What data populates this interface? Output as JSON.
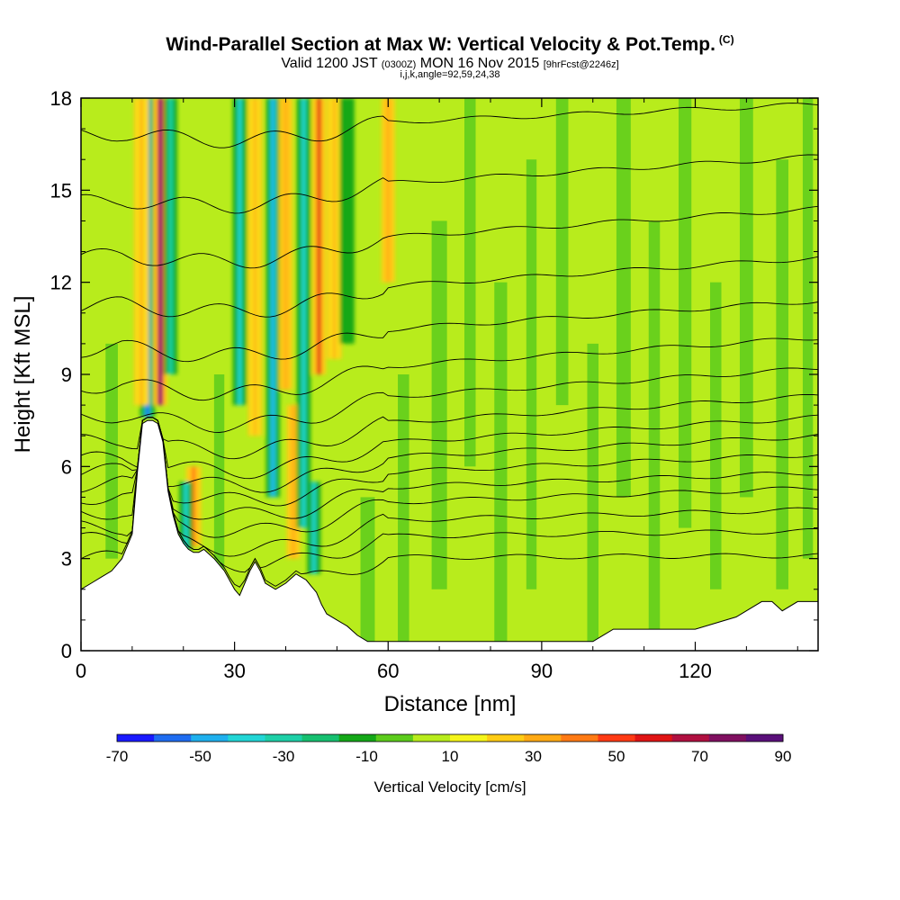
{
  "titles": {
    "main": "Wind-Parallel Section at Max W: Vertical Velocity & Pot.Temp.",
    "copyright": "(C)",
    "valid_prefix": "Valid 1200 JST",
    "valid_utc": "(0300Z)",
    "valid_date": "MON 16 Nov 2015",
    "forecast": "[9hrFcst@2246z]",
    "indices": "i,j,k,angle=92,59,24,38"
  },
  "colorbar": {
    "label": "Vertical Velocity [cm/s]",
    "ticks": [
      "-70",
      "-50",
      "-30",
      "-10",
      "10",
      "30",
      "50",
      "70",
      "90"
    ],
    "colors": [
      "#1a1aff",
      "#1f6cf0",
      "#1fb0ee",
      "#22d6d6",
      "#1ed0a8",
      "#16c070",
      "#14a818",
      "#5ccc1c",
      "#b8ec1c",
      "#f5f51a",
      "#ffcc14",
      "#ffaa14",
      "#ff7a14",
      "#ff3a14",
      "#e01414",
      "#b01040",
      "#801060",
      "#5a107a"
    ]
  },
  "chart_data": {
    "type": "heatmap",
    "title": "Wind-Parallel Section at Max W: Vertical Velocity & Pot.Temp.",
    "xlabel": "Distance [nm]",
    "ylabel": "Height [Kft MSL]",
    "xlim": [
      0,
      144
    ],
    "ylim": [
      0,
      18
    ],
    "xticks": [
      "0",
      "30",
      "60",
      "90",
      "120"
    ],
    "yticks": [
      "0",
      "3",
      "6",
      "9",
      "12",
      "15",
      "18"
    ],
    "x_tick_values": [
      0,
      30,
      60,
      90,
      120
    ],
    "y_tick_values": [
      0,
      3,
      6,
      9,
      12,
      15,
      18
    ],
    "colorbar_range": [
      -70,
      90
    ],
    "terrain": {
      "x": [
        0,
        2,
        4,
        6,
        8,
        10,
        11,
        12,
        13,
        14,
        15,
        16,
        17,
        18,
        19,
        20,
        21,
        22,
        23,
        24,
        26,
        28,
        30,
        31,
        32,
        33,
        34,
        35,
        36,
        38,
        40,
        42,
        44,
        45,
        46,
        47,
        48,
        50,
        52,
        54,
        56,
        58,
        60,
        70,
        80,
        90,
        100,
        102,
        104,
        110,
        120,
        128,
        133,
        135,
        137,
        140,
        142,
        144
      ],
      "height": [
        2.0,
        2.2,
        2.4,
        2.6,
        3.0,
        3.8,
        5.8,
        7.4,
        7.5,
        7.5,
        7.4,
        6.8,
        5.2,
        4.4,
        3.8,
        3.5,
        3.3,
        3.2,
        3.2,
        3.3,
        3.0,
        2.6,
        2.0,
        1.8,
        2.2,
        2.6,
        2.9,
        2.6,
        2.2,
        2.0,
        2.2,
        2.5,
        2.3,
        2.1,
        1.9,
        1.5,
        1.2,
        1.0,
        0.8,
        0.5,
        0.3,
        0.3,
        0.3,
        0.3,
        0.3,
        0.3,
        0.3,
        0.5,
        0.7,
        0.7,
        0.7,
        1.1,
        1.6,
        1.6,
        1.3,
        1.6,
        1.6,
        1.6
      ]
    },
    "theta_contours": {
      "levels_kelvin": [
        280,
        282,
        284,
        286,
        288,
        290,
        292,
        294,
        296,
        298,
        300,
        302,
        304,
        306,
        308,
        310
      ],
      "upstream_heights_kft": [
        3.0,
        3.6,
        4.0,
        4.5,
        5.0,
        5.4,
        5.8,
        6.2,
        6.8,
        7.6,
        8.6,
        9.8,
        11.2,
        12.8,
        14.6,
        16.8
      ],
      "downstream_heights_kft": [
        3.1,
        3.9,
        4.6,
        5.3,
        5.8,
        6.4,
        7.0,
        7.6,
        8.3,
        9.2,
        10.2,
        11.4,
        12.8,
        14.4,
        16.1,
        17.8
      ]
    },
    "vertical_velocity_features": [
      {
        "x": 13.0,
        "width": 1.5,
        "y_bottom": 7.6,
        "y_top": 18,
        "w": -55
      },
      {
        "x": 15.5,
        "width": 1.3,
        "y_bottom": 8.0,
        "y_top": 18,
        "w": 85
      },
      {
        "x": 11.8,
        "width": 1.5,
        "y_bottom": 8.0,
        "y_top": 18,
        "w": 30
      },
      {
        "x": 17.5,
        "width": 1.2,
        "y_bottom": 9.0,
        "y_top": 18,
        "w": -30
      },
      {
        "x": 22.0,
        "width": 1.5,
        "y_bottom": 3.4,
        "y_top": 6.0,
        "w": 40
      },
      {
        "x": 20.5,
        "width": 1.2,
        "y_bottom": 3.3,
        "y_top": 5.5,
        "w": -40
      },
      {
        "x": 31.0,
        "width": 1.3,
        "y_bottom": 8.0,
        "y_top": 18,
        "w": -35
      },
      {
        "x": 34.0,
        "width": 1.3,
        "y_bottom": 7.0,
        "y_top": 18,
        "w": 28
      },
      {
        "x": 37.5,
        "width": 1.3,
        "y_bottom": 5.0,
        "y_top": 18,
        "w": -45
      },
      {
        "x": 40.0,
        "width": 1.2,
        "y_bottom": 8.5,
        "y_top": 18,
        "w": 35
      },
      {
        "x": 41.5,
        "width": 1.2,
        "y_bottom": 3.0,
        "y_top": 8.0,
        "w": 35
      },
      {
        "x": 43.5,
        "width": 1.3,
        "y_bottom": 4.0,
        "y_top": 18,
        "w": -40
      },
      {
        "x": 46.5,
        "width": 1.3,
        "y_bottom": 9.0,
        "y_top": 18,
        "w": 60
      },
      {
        "x": 45.5,
        "width": 1.2,
        "y_bottom": 2.5,
        "y_top": 5.5,
        "w": -35
      },
      {
        "x": 49.5,
        "width": 1.4,
        "y_bottom": 9.5,
        "y_top": 18,
        "w": 28
      },
      {
        "x": 52.0,
        "width": 1.4,
        "y_bottom": 10.0,
        "y_top": 18,
        "w": -15
      },
      {
        "x": 60.0,
        "width": 1.2,
        "y_bottom": 12.0,
        "y_top": 18,
        "w": 35
      }
    ]
  }
}
